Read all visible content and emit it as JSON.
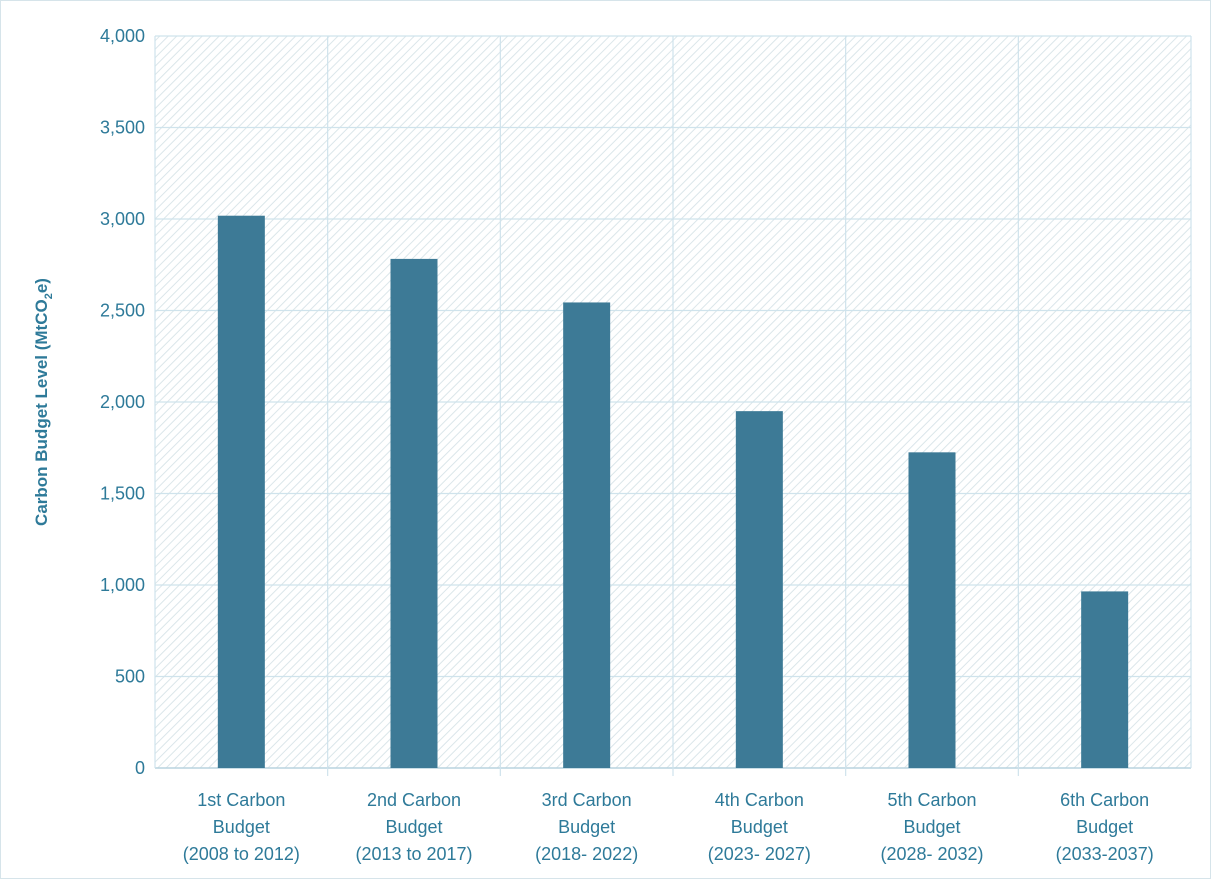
{
  "chart_data": {
    "type": "bar",
    "title": "",
    "xlabel": "",
    "ylabel": {
      "main": "Carbon Budget Level (MtCO",
      "subscript": "2",
      "suffix": "e)"
    },
    "categories": [
      [
        "1st Carbon",
        "Budget",
        "(2008 to 2012)"
      ],
      [
        "2nd Carbon",
        "Budget",
        "(2013 to 2017)"
      ],
      [
        "3rd Carbon",
        "Budget",
        "(2018- 2022)"
      ],
      [
        "4th Carbon",
        "Budget",
        "(2023- 2027)"
      ],
      [
        "5th Carbon",
        "Budget",
        "(2028- 2032)"
      ],
      [
        "6th Carbon",
        "Budget",
        "(2033-2037)"
      ]
    ],
    "values": [
      3018,
      2782,
      2544,
      1950,
      1725,
      965
    ],
    "ylim": [
      0,
      4000
    ],
    "yticks": [
      0,
      500,
      1000,
      1500,
      2000,
      2500,
      3000,
      3500,
      4000
    ],
    "ytick_labels": [
      "0",
      "500",
      "1,000",
      "1,500",
      "2,000",
      "2,500",
      "3,000",
      "3,500",
      "4,000"
    ],
    "grid": true,
    "legend": "none",
    "colors": {
      "bar": "#3d7a96",
      "grid": "#cfe3ec",
      "hatch": "#dbe6ea",
      "text": "#2e7a99",
      "axis": "#b9d3df"
    }
  }
}
